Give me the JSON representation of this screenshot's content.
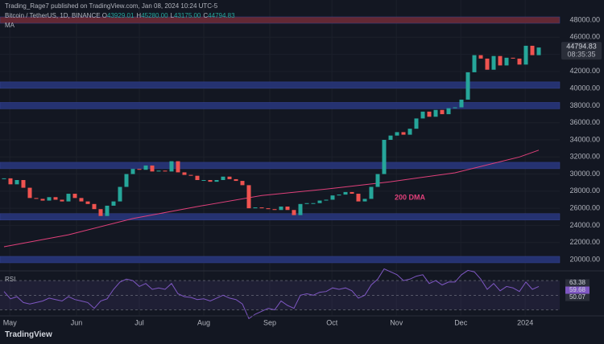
{
  "header": {
    "publisher": "Trading_Rage7 published on TradingView.com, Jan 08, 2024 10:24 UTC-5",
    "symbol": "Bitcoin / TetherUS, 1D, BINANCE",
    "ohlc": [
      {
        "key": "O",
        "value": "43929.01"
      },
      {
        "key": "H",
        "value": "45280.00"
      },
      {
        "key": "L",
        "value": "43175.00"
      },
      {
        "key": "C",
        "value": "44794.83"
      }
    ],
    "indicator": "MA"
  },
  "chart_data": [
    {
      "type": "candlestick",
      "values": [
        29500,
        28800,
        29300,
        28400,
        27200,
        27100,
        26900,
        27300,
        27000,
        26800,
        27700,
        27200,
        26800,
        26500,
        25900,
        25100,
        26300,
        26800,
        28500,
        30000,
        30600,
        30500,
        31000,
        30300,
        30400,
        30300,
        31500,
        30200,
        29900,
        29800,
        29300,
        29300,
        29100,
        29300,
        29700,
        29400,
        29200,
        28700,
        26000,
        26100,
        26000,
        25900,
        25800,
        26200,
        25800,
        25200,
        26500,
        26600,
        26600,
        26900,
        27000,
        27500,
        27600,
        27900,
        27700,
        26800,
        27100,
        28500,
        30000,
        34000,
        34500,
        34900,
        34600,
        35300,
        36500,
        37300,
        36700,
        37500,
        37000,
        37700,
        37800,
        38700,
        41900,
        43900,
        43500,
        42200,
        43800,
        42700,
        43600,
        43500,
        42800,
        45000,
        43900,
        44794.83
      ],
      "up_color": "#26a69a",
      "down_color": "#ef5350",
      "xlim": [
        -0.625,
        86.25
      ],
      "xticks": [
        {
          "value": 0.9,
          "label": "May"
        },
        {
          "value": 11.25,
          "label": "Jun"
        },
        {
          "value": 21,
          "label": "Jul"
        },
        {
          "value": 31,
          "label": "Aug"
        },
        {
          "value": 41.25,
          "label": "Sep"
        },
        {
          "value": 50.9,
          "label": "Oct"
        },
        {
          "value": 60.9,
          "label": "Nov"
        },
        {
          "value": 70.9,
          "label": "Dec"
        },
        {
          "value": 80.9,
          "label": "2024"
        }
      ],
      "ylim": [
        18870,
        50350
      ],
      "yticks": [
        {
          "value": 20000,
          "label": "20000.00"
        },
        {
          "value": 22000,
          "label": "22000.00"
        },
        {
          "value": 24000,
          "label": "24000.00"
        },
        {
          "value": 26000,
          "label": "26000.00"
        },
        {
          "value": 28000,
          "label": "28000.00"
        },
        {
          "value": 30000,
          "label": "30000.00"
        },
        {
          "value": 32000,
          "label": "32000.00"
        },
        {
          "value": 34000,
          "label": "34000.00"
        },
        {
          "value": 36000,
          "label": "36000.00"
        },
        {
          "value": 38000,
          "label": "38000.00"
        },
        {
          "value": 40000,
          "label": "40000.00"
        },
        {
          "value": 42000,
          "label": "42000.00"
        },
        {
          "value": 44000,
          "label": "44000.00"
        },
        {
          "value": 46000,
          "label": "46000.00"
        },
        {
          "value": 48000,
          "label": "48000.00"
        }
      ],
      "grid": true,
      "zones": [
        {
          "level": 48000,
          "color": "#6b2a35"
        },
        {
          "level": 40400,
          "color": "#27357a"
        },
        {
          "level": 38000,
          "color": "#27357a"
        },
        {
          "level": 31000,
          "color": "#27357a"
        },
        {
          "level": 25000,
          "color": "#27357a"
        },
        {
          "level": 20000,
          "color": "#27357a"
        }
      ],
      "ma": {
        "name": "200 DMA",
        "color": "#e0407a",
        "x": [
          0,
          10,
          20,
          30,
          40,
          50,
          60,
          70,
          80,
          83
        ],
        "values": [
          21500,
          22900,
          24800,
          26200,
          27500,
          28250,
          29100,
          30150,
          32000,
          32800
        ]
      },
      "countdown": "08:35:35"
    },
    {
      "type": "line",
      "title": "RSI",
      "color": "#7e57c2",
      "values": [
        55,
        45,
        48,
        40,
        38,
        40,
        42,
        46,
        44,
        42,
        48,
        44,
        42,
        40,
        32,
        42,
        45,
        58,
        68,
        72,
        70,
        62,
        66,
        58,
        60,
        58,
        66,
        52,
        48,
        47,
        44,
        45,
        42,
        46,
        50,
        46,
        44,
        38,
        18,
        24,
        28,
        32,
        30,
        42,
        36,
        32,
        50,
        52,
        50,
        54,
        55,
        60,
        58,
        60,
        56,
        46,
        50,
        64,
        72,
        86,
        82,
        78,
        70,
        72,
        76,
        78,
        66,
        70,
        64,
        68,
        68,
        78,
        84,
        82,
        72,
        58,
        66,
        56,
        62,
        60,
        55,
        68,
        58,
        62
      ],
      "ylim": [
        25,
        80
      ],
      "levels": [
        70,
        50,
        30
      ],
      "badges": [
        {
          "value": 63.38,
          "color": "#2a2e39"
        },
        {
          "value": 59.68,
          "color": "#7e57c2"
        },
        {
          "value": 50.07,
          "color": "#2a2e39"
        }
      ]
    }
  ],
  "footer": {
    "brand": "TradingView"
  }
}
